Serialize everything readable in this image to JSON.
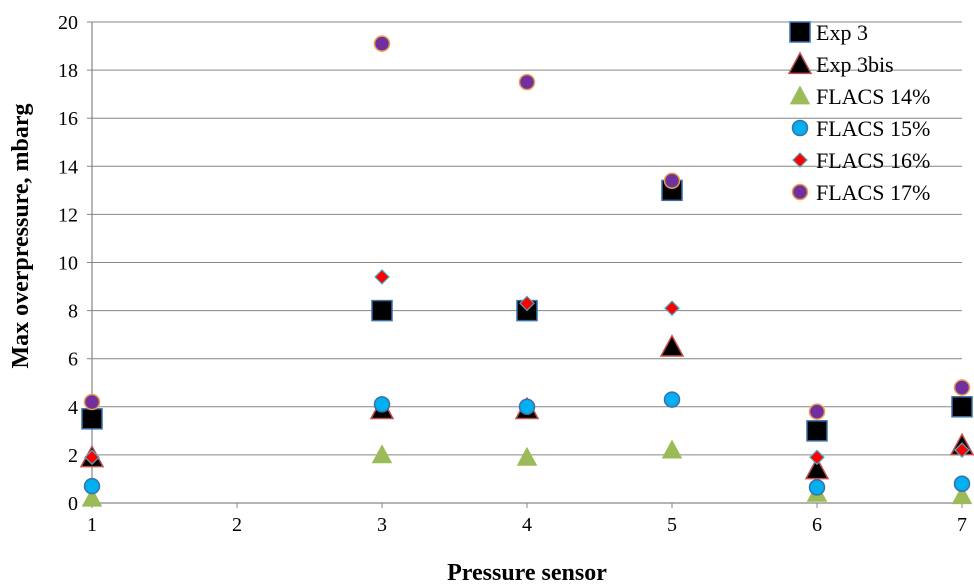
{
  "chart_data": {
    "type": "scatter",
    "xlabel": "Pressure sensor",
    "ylabel": "Max overpressure, mbarg",
    "xlim": [
      1,
      7
    ],
    "ylim": [
      0,
      20
    ],
    "x_ticks": [
      1,
      2,
      3,
      4,
      5,
      6,
      7
    ],
    "y_ticks": [
      0,
      2,
      4,
      6,
      8,
      10,
      12,
      14,
      16,
      18,
      20
    ],
    "grid": "horizontal",
    "legend_position": "top-right",
    "series": [
      {
        "name": "Exp 3",
        "marker": "square",
        "color": "#000000",
        "edge": "#3a6fa8",
        "points": [
          [
            1,
            3.5
          ],
          [
            3,
            8.0
          ],
          [
            4,
            8.0
          ],
          [
            5,
            13.0
          ],
          [
            6,
            3.0
          ],
          [
            7,
            4.0
          ]
        ]
      },
      {
        "name": "Exp 3bis",
        "marker": "triangle",
        "color": "#000000",
        "edge": "#c0504d",
        "points": [
          [
            1,
            1.9
          ],
          [
            3,
            3.9
          ],
          [
            4,
            3.9
          ],
          [
            5,
            6.5
          ],
          [
            6,
            1.4
          ],
          [
            7,
            2.4
          ]
        ]
      },
      {
        "name": "FLACS 14%",
        "marker": "triangle",
        "color": "#9bbb59",
        "edge": "#9bbb59",
        "points": [
          [
            1,
            0.2
          ],
          [
            3,
            2.0
          ],
          [
            4,
            1.9
          ],
          [
            5,
            2.2
          ],
          [
            6,
            0.4
          ],
          [
            7,
            0.3
          ]
        ]
      },
      {
        "name": "FLACS 15%",
        "marker": "circle",
        "color": "#00b0f0",
        "edge": "#3a6fa8",
        "points": [
          [
            1,
            0.7
          ],
          [
            3,
            4.1
          ],
          [
            4,
            4.0
          ],
          [
            5,
            4.3
          ],
          [
            6,
            0.65
          ],
          [
            7,
            0.8
          ]
        ]
      },
      {
        "name": "FLACS 16%",
        "marker": "diamond",
        "color": "#ff0000",
        "edge": "#4aacc6",
        "points": [
          [
            1,
            1.9
          ],
          [
            3,
            9.4
          ],
          [
            4,
            8.3
          ],
          [
            5,
            8.1
          ],
          [
            6,
            1.9
          ],
          [
            7,
            2.2
          ]
        ]
      },
      {
        "name": "FLACS 17%",
        "marker": "circle",
        "color": "#7030a0",
        "edge": "#e8a050",
        "points": [
          [
            1,
            4.2
          ],
          [
            3,
            19.1
          ],
          [
            4,
            17.5
          ],
          [
            5,
            13.4
          ],
          [
            6,
            3.8
          ],
          [
            7,
            4.8
          ]
        ]
      }
    ]
  }
}
